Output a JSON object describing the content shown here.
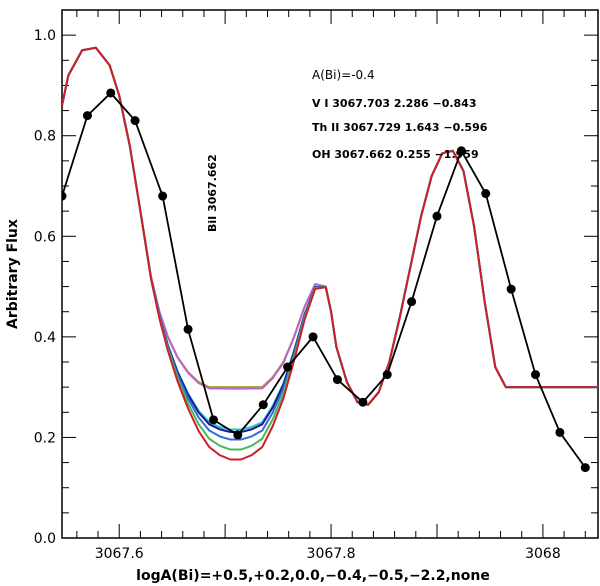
{
  "chart_data": {
    "type": "line",
    "title": "",
    "xlabel": "logA(Bi)=+0.5,+0.2,0.0,−0.4,−0.5,−2.2,none",
    "ylabel": "Arbitrary Flux",
    "xlim": [
      3067.546,
      3068.052
    ],
    "ylim": [
      0.0,
      1.05
    ],
    "x_ticks": [
      {
        "value": 3067.6,
        "label": "3067.6"
      },
      {
        "value": 3067.8,
        "label": "3067.8"
      },
      {
        "value": 3068.0,
        "label": "3068"
      }
    ],
    "y_ticks": [
      {
        "value": 0.0,
        "label": "0.0"
      },
      {
        "value": 0.2,
        "label": "0.2"
      },
      {
        "value": 0.4,
        "label": "0.4"
      },
      {
        "value": 0.6,
        "label": "0.6"
      },
      {
        "value": 0.8,
        "label": "0.8"
      },
      {
        "value": 1.0,
        "label": "1.0"
      }
    ],
    "annotations": {
      "abundance": "A(Bi)=-0.4",
      "line_v": "V I 3067.703 2.286 −0.843",
      "line_th": "Th II 3067.729 1.643 −0.596",
      "line_oh": "OH 3067.662 0.255 −1.959",
      "bi_label": "BiI 3067.662"
    },
    "observed": {
      "name": "observed",
      "color": "#000000",
      "x": [
        3067.546,
        3067.57,
        3067.592,
        3067.615,
        3067.641,
        3067.665,
        3067.689,
        3067.712,
        3067.736,
        3067.759,
        3067.783,
        3067.806,
        3067.83,
        3067.853,
        3067.876,
        3067.9,
        3067.923,
        3067.946,
        3067.97,
        3067.993,
        3068.016,
        3068.04
      ],
      "y": [
        0.68,
        0.84,
        0.885,
        0.83,
        0.68,
        0.415,
        0.235,
        0.205,
        0.265,
        0.34,
        0.4,
        0.315,
        0.27,
        0.325,
        0.47,
        0.64,
        0.77,
        0.685,
        0.495,
        0.325,
        0.21,
        0.14
      ]
    },
    "synthetic_x": [
      3067.546,
      3067.552,
      3067.565,
      3067.578,
      3067.591,
      3067.6,
      3067.61,
      3067.62,
      3067.63,
      3067.638,
      3067.646,
      3067.655,
      3067.665,
      3067.675,
      3067.685,
      3067.695,
      3067.705,
      3067.715,
      3067.725,
      3067.735,
      3067.745,
      3067.755,
      3067.765,
      3067.775,
      3067.785,
      3067.795,
      3067.8,
      3067.805,
      3067.815,
      3067.825,
      3067.835,
      3067.845,
      3067.855,
      3067.865,
      3067.875,
      3067.885,
      3067.895,
      3067.905,
      3067.915,
      3067.925,
      3067.935,
      3067.945,
      3067.955,
      3067.965,
      3067.975,
      3067.985,
      3067.995,
      3068.005,
      3068.015,
      3068.025,
      3068.035,
      3068.045,
      3068.052
    ],
    "synthetic_base": [
      0.86,
      0.92,
      0.97,
      0.975,
      0.94,
      0.88,
      0.78,
      0.65,
      0.52,
      0.45,
      0.4,
      0.36,
      0.33,
      0.31,
      0.3,
      0.3,
      0.3,
      0.3,
      0.3,
      0.3,
      0.32,
      0.35,
      0.4,
      0.46,
      0.505,
      0.5,
      0.45,
      0.38,
      0.31,
      0.27,
      0.265,
      0.29,
      0.35,
      0.44,
      0.54,
      0.64,
      0.72,
      0.765,
      0.77,
      0.73,
      0.62,
      0.47,
      0.34,
      0.3,
      0.3,
      0.3,
      0.3,
      0.3,
      0.3,
      0.3,
      0.3,
      0.3,
      0.3
    ],
    "synthetic_window": [
      3067.62,
      3067.8
    ],
    "series": [
      {
        "name": "logA(Bi)=+0.5",
        "color": "#cc1f2a",
        "dip": 0.145
      },
      {
        "name": "logA(Bi)=+0.2",
        "color": "#4ab85a",
        "dip": 0.125
      },
      {
        "name": "logA(Bi)=0.0",
        "color": "#2f6fd6",
        "dip": 0.105
      },
      {
        "name": "logA(Bi)=−0.4",
        "color": "#1a1a8f",
        "dip": 0.09
      },
      {
        "name": "logA(Bi)=−0.5",
        "color": "#2ec0d8",
        "dip": 0.085
      },
      {
        "name": "logA(Bi)=−2.2",
        "color": "#c060c8",
        "dip": 0.003
      },
      {
        "name": "none",
        "color": "#9aa62a",
        "dip": 0.0
      }
    ]
  }
}
